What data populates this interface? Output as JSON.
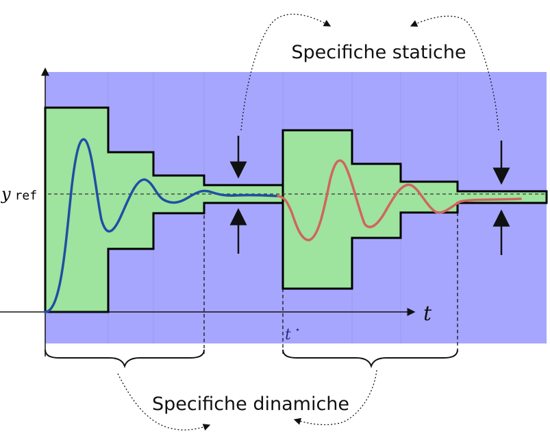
{
  "labels": {
    "static_specs": "Specifiche statiche",
    "dynamic_specs": "Specifiche dinamiche",
    "yref_y": "y",
    "yref_sub": "ref",
    "time_axis": "t",
    "t_star": "t",
    "t_star_sup": "⋆"
  },
  "colors": {
    "background_band": "#a6a6ff",
    "allowed_region": "#9ee39e",
    "response_first": "#1f4fa3",
    "response_second": "#d0645e",
    "boundary": "#000000"
  }
}
